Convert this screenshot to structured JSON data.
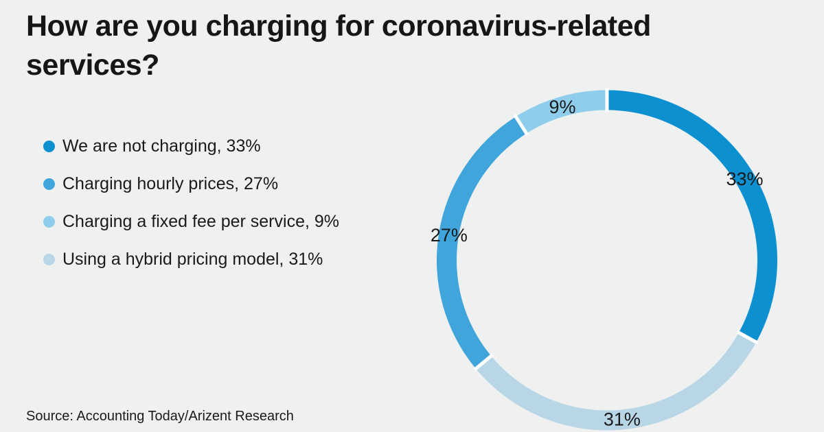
{
  "page": {
    "background_color": "#eff0f0",
    "title": "How are you charging for coronavirus-related\nservices?",
    "source": "Source: Accounting Today/Arizent Research"
  },
  "legend": {
    "position": "left",
    "items": [
      {
        "label": "We are not charging, 33%",
        "color": "#0c90d0"
      },
      {
        "label": "Charging hourly prices, 27%",
        "color": "#3fa5da"
      },
      {
        "label": "Charging a fixed fee per service, 9%",
        "color": "#8ecdec"
      },
      {
        "label": "Using a hybrid pricing model, 31%",
        "color": "#b9d6e7"
      }
    ]
  },
  "chart_data": {
    "type": "pie",
    "subtype": "donut",
    "title": "How are you charging for coronavirus-related services?",
    "slices": [
      {
        "label": "We are not charging",
        "value": 33,
        "data_label": "33%",
        "color": "#0c90d0"
      },
      {
        "label": "Charging hourly prices",
        "value": 27,
        "data_label": "27%",
        "color": "#3fa5da"
      },
      {
        "label": "Charging a fixed fee per service",
        "value": 9,
        "data_label": "9%",
        "color": "#8ecdec"
      },
      {
        "label": "Using a hybrid pricing model",
        "value": 31,
        "data_label": "31%",
        "color": "#b9d6e7"
      }
    ],
    "arrangement_clockwise_from_top": [
      0,
      3,
      1,
      2
    ],
    "start_angle": "12 o'clock",
    "separator_color": "#ffffff",
    "data_label_color": "#191919",
    "legend_position": "left",
    "source": "Source: Accounting Today/Arizent Research"
  }
}
